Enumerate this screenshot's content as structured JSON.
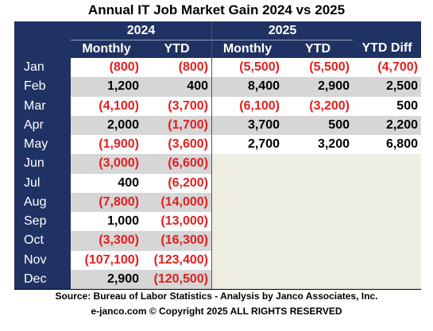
{
  "title": "Annual IT  Job Market  Gain 2024 vs 2025",
  "headers": {
    "year_a": "2024",
    "year_b": "2025",
    "monthly": "Monthly",
    "ytd": "YTD",
    "ytd_diff": "YTD Diff"
  },
  "rows": [
    {
      "month": "Jan",
      "m24": "(800)",
      "y24": "(800)",
      "m25": "(5,500)",
      "y25": "(5,500)",
      "diff": "(4,700)"
    },
    {
      "month": "Feb",
      "m24": "1,200",
      "y24": "400",
      "m25": "8,400",
      "y25": "2,900",
      "diff": "2,500"
    },
    {
      "month": "Mar",
      "m24": "(4,100)",
      "y24": "(3,700)",
      "m25": "(6,100)",
      "y25": "(3,200)",
      "diff": "500"
    },
    {
      "month": "Apr",
      "m24": "2,000",
      "y24": "(1,700)",
      "m25": "3,700",
      "y25": "500",
      "diff": "2,200"
    },
    {
      "month": "May",
      "m24": "(1,900)",
      "y24": "(3,600)",
      "m25": "2,700",
      "y25": "3,200",
      "diff": "6,800"
    },
    {
      "month": "Jun",
      "m24": "(3,000)",
      "y24": "(6,600)",
      "m25": "",
      "y25": "",
      "diff": ""
    },
    {
      "month": "Jul",
      "m24": "400",
      "y24": "(6,200)",
      "m25": "",
      "y25": "",
      "diff": ""
    },
    {
      "month": "Aug",
      "m24": "(7,800)",
      "y24": "(14,000)",
      "m25": "",
      "y25": "",
      "diff": ""
    },
    {
      "month": "Sep",
      "m24": "1,000",
      "y24": "(13,000)",
      "m25": "",
      "y25": "",
      "diff": ""
    },
    {
      "month": "Oct",
      "m24": "(3,300)",
      "y24": "(16,300)",
      "m25": "",
      "y25": "",
      "diff": ""
    },
    {
      "month": "Nov",
      "m24": "(107,100)",
      "y24": "(123,400)",
      "m25": "",
      "y25": "",
      "diff": ""
    },
    {
      "month": "Dec",
      "m24": "2,900",
      "y24": "(120,500)",
      "m25": "",
      "y25": "",
      "diff": ""
    }
  ],
  "footer": {
    "source": "Source: Bureau of Labor Statistics - Analysis by Janco Associates, Inc.",
    "copyright": "e-janco.com © Copyright 2025 ALL RIGHTS RESERVED"
  },
  "colors": {
    "header_bg": "#1f3263",
    "negative": "#e31e1e",
    "row_shade": "#d6d6d6",
    "empty_fill": "#eeede4"
  }
}
